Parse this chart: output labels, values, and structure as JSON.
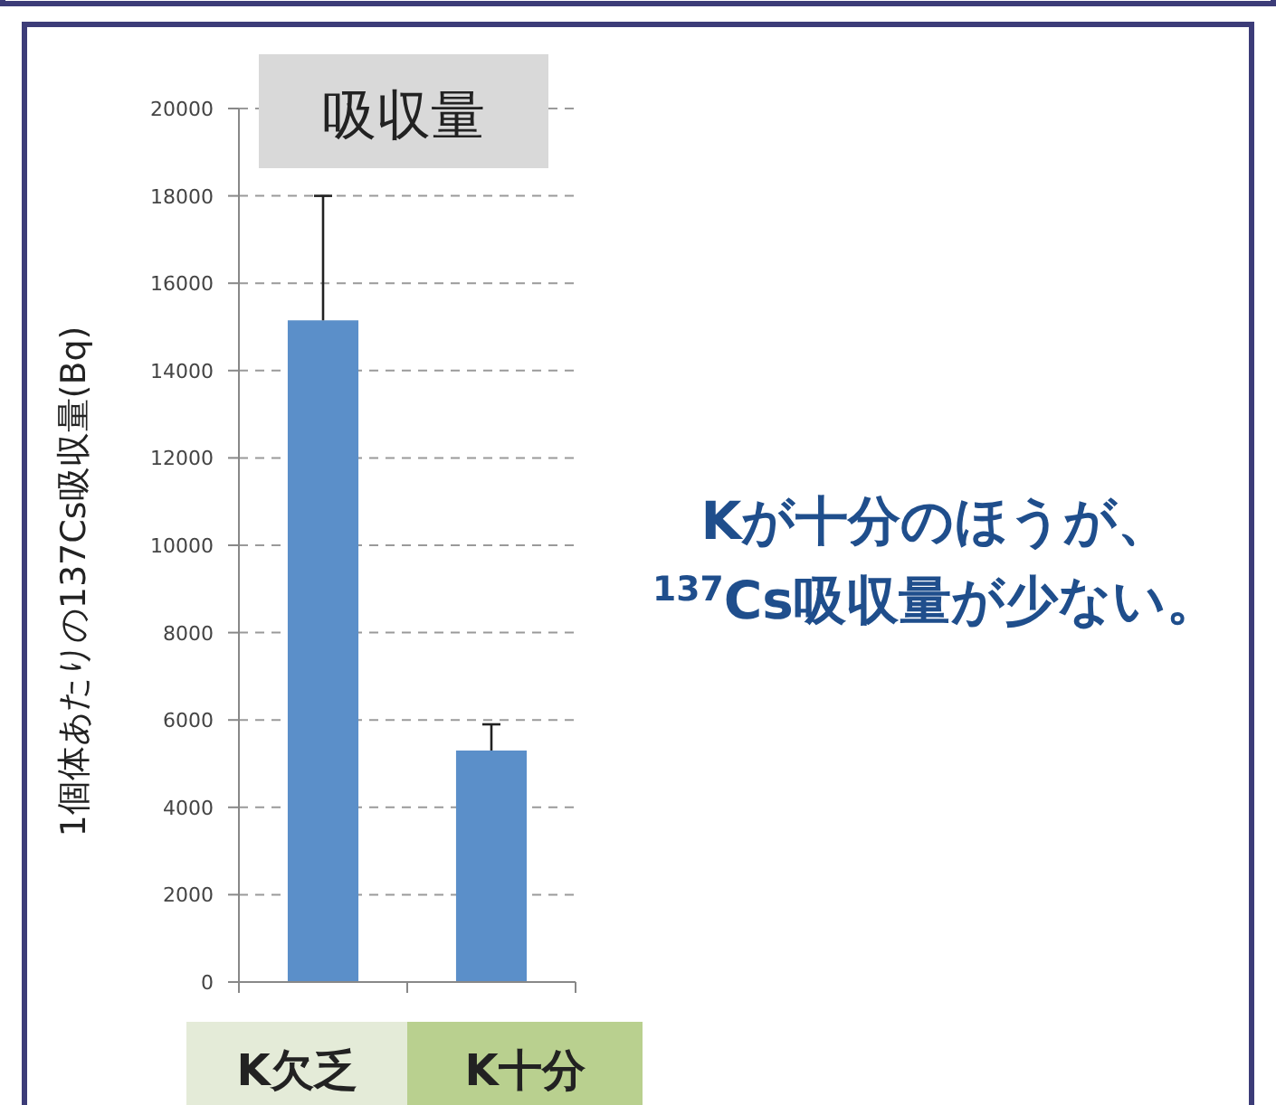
{
  "chart_data": {
    "type": "bar",
    "title": "吸収量",
    "ylabel": "1個体あたりの137Cs吸収量(Bq)",
    "categories": [
      "K欠乏",
      "K十分"
    ],
    "values": [
      15150,
      5300
    ],
    "errors": [
      [
        15150,
        18000
      ],
      [
        5300,
        5900
      ]
    ],
    "color": "#5b8fc9",
    "ylim": [
      0,
      20000
    ],
    "yticks": [
      0,
      2000,
      4000,
      6000,
      8000,
      10000,
      12000,
      14000,
      16000,
      18000,
      20000
    ],
    "grid": "y",
    "annotations": [
      "Kが十分のほうが、",
      "$^{137}$Cs吸収量が少ない。"
    ]
  }
}
